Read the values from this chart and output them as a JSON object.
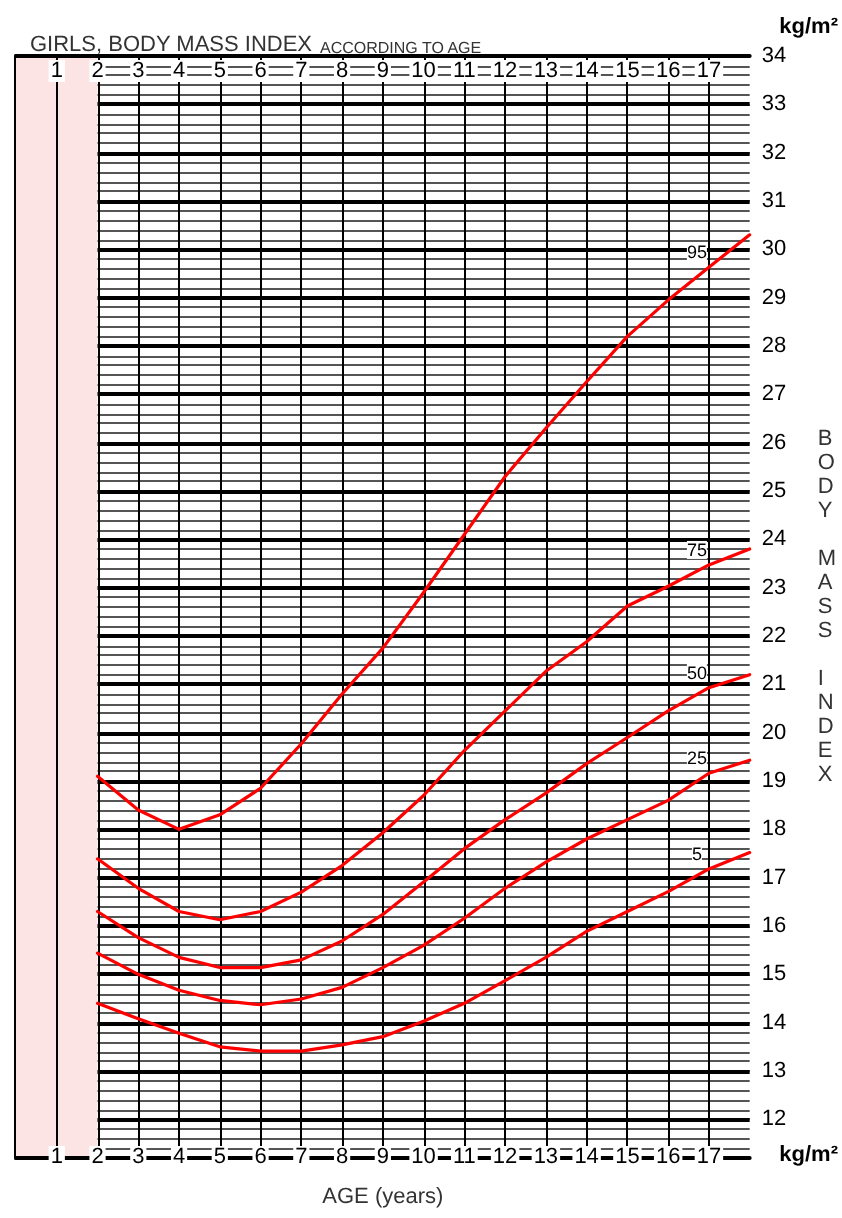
{
  "chart_data": {
    "type": "line",
    "title": "GIRLS, BODY MASS INDEX",
    "subtitle": "ACCORDING TO AGE",
    "xlabel": "AGE (years)",
    "ylabel": "BODY MASS INDEX",
    "annotations": [
      "kg/m²",
      "kg/m²"
    ],
    "x": [
      2,
      3,
      4,
      5,
      6,
      7,
      8,
      9,
      10,
      11,
      12,
      13,
      14,
      15,
      16,
      17,
      18
    ],
    "series": [
      {
        "name": "95",
        "color": "#ff0000",
        "values": [
          19.1,
          18.4,
          18.0,
          18.3,
          18.85,
          19.77,
          20.8,
          21.75,
          22.9,
          24.1,
          25.3,
          26.3,
          27.26,
          28.2,
          28.95,
          29.63,
          30.3
        ]
      },
      {
        "name": "75",
        "color": "#ff0000",
        "values": [
          17.39,
          16.78,
          16.3,
          16.13,
          16.3,
          16.7,
          17.25,
          17.93,
          18.7,
          19.63,
          20.45,
          21.27,
          21.88,
          22.62,
          23.03,
          23.47,
          23.8
        ]
      },
      {
        "name": "50",
        "color": "#ff0000",
        "values": [
          16.3,
          15.76,
          15.35,
          15.14,
          15.14,
          15.3,
          15.69,
          16.24,
          16.91,
          17.6,
          18.2,
          18.75,
          19.36,
          19.9,
          20.45,
          20.93,
          21.2
        ]
      },
      {
        "name": "25",
        "color": "#ff0000",
        "values": [
          15.44,
          15.0,
          14.67,
          14.46,
          14.37,
          14.49,
          14.73,
          15.14,
          15.6,
          16.16,
          16.78,
          17.32,
          17.8,
          18.2,
          18.6,
          19.16,
          19.43
        ]
      },
      {
        "name": "5",
        "color": "#ff0000",
        "values": [
          14.4,
          14.08,
          13.78,
          13.5,
          13.41,
          13.41,
          13.54,
          13.71,
          14.03,
          14.4,
          14.87,
          15.35,
          15.89,
          16.3,
          16.71,
          17.18,
          17.52
        ]
      }
    ],
    "xlim": [
      0,
      18
    ],
    "xticks": [
      1,
      2,
      3,
      4,
      5,
      6,
      7,
      8,
      9,
      10,
      11,
      12,
      13,
      14,
      15,
      16,
      17
    ],
    "x2lim": [
      0,
      18
    ],
    "x2ticks": [
      1,
      2,
      3,
      4,
      5,
      6,
      7,
      8,
      9,
      10,
      11,
      12,
      13,
      14,
      15,
      16,
      17
    ],
    "ylim": [
      11.2,
      34
    ],
    "yticks": [
      {
        "value": 11.2,
        "label": null
      },
      {
        "value": 11.4,
        "label": null
      },
      {
        "value": 11.6,
        "label": null
      },
      {
        "value": 11.8,
        "label": null
      },
      12,
      {
        "value": 12.2,
        "label": null
      },
      {
        "value": 12.4,
        "label": null
      },
      {
        "value": 12.6,
        "label": null
      },
      {
        "value": 12.8,
        "label": null
      },
      13,
      {
        "value": 13.2,
        "label": null
      },
      {
        "value": 13.4,
        "label": null
      },
      {
        "value": 13.6,
        "label": null
      },
      {
        "value": 13.8,
        "label": null
      },
      14,
      {
        "value": 14.2,
        "label": null
      },
      {
        "value": 14.4,
        "label": null
      },
      {
        "value": 14.6,
        "label": null
      },
      {
        "value": 14.8,
        "label": null
      },
      15,
      {
        "value": 15.2,
        "label": null
      },
      {
        "value": 15.4,
        "label": null
      },
      {
        "value": 15.6,
        "label": null
      },
      {
        "value": 15.8,
        "label": null
      },
      16,
      {
        "value": 16.2,
        "label": null
      },
      {
        "value": 16.4,
        "label": null
      },
      {
        "value": 16.6,
        "label": null
      },
      {
        "value": 16.8,
        "label": null
      },
      17,
      {
        "value": 17.2,
        "label": null
      },
      {
        "value": 17.4,
        "label": null
      },
      {
        "value": 17.6,
        "label": null
      },
      {
        "value": 17.8,
        "label": null
      },
      18,
      {
        "value": 18.2,
        "label": null
      },
      {
        "value": 18.4,
        "label": null
      },
      {
        "value": 18.6,
        "label": null
      },
      {
        "value": 18.8,
        "label": null
      },
      19,
      {
        "value": 19.2,
        "label": null
      },
      {
        "value": 19.4,
        "label": null
      },
      {
        "value": 19.6,
        "label": null
      },
      {
        "value": 19.8,
        "label": null
      },
      20,
      {
        "value": 20.2,
        "label": null
      },
      {
        "value": 20.4,
        "label": null
      },
      {
        "value": 20.6,
        "label": null
      },
      {
        "value": 20.8,
        "label": null
      },
      21,
      {
        "value": 21.2,
        "label": null
      },
      {
        "value": 21.4,
        "label": null
      },
      {
        "value": 21.6,
        "label": null
      },
      {
        "value": 21.8,
        "label": null
      },
      22,
      {
        "value": 22.2,
        "label": null
      },
      {
        "value": 22.4,
        "label": null
      },
      {
        "value": 22.6,
        "label": null
      },
      {
        "value": 22.8,
        "label": null
      },
      23,
      {
        "value": 23.2,
        "label": null
      },
      {
        "value": 23.4,
        "label": null
      },
      {
        "value": 23.6,
        "label": null
      },
      {
        "value": 23.8,
        "label": null
      },
      24,
      {
        "value": 24.2,
        "label": null
      },
      {
        "value": 24.4,
        "label": null
      },
      {
        "value": 24.6,
        "label": null
      },
      {
        "value": 24.8,
        "label": null
      },
      25,
      {
        "value": 25.2,
        "label": null
      },
      {
        "value": 25.4,
        "label": null
      },
      {
        "value": 25.6,
        "label": null
      },
      {
        "value": 25.8,
        "label": null
      },
      26,
      {
        "value": 26.2,
        "label": null
      },
      {
        "value": 26.4,
        "label": null
      },
      {
        "value": 26.6,
        "label": null
      },
      {
        "value": 26.8,
        "label": null
      },
      27,
      {
        "value": 27.2,
        "label": null
      },
      {
        "value": 27.4,
        "label": null
      },
      {
        "value": 27.6,
        "label": null
      },
      {
        "value": 27.8,
        "label": null
      },
      28,
      {
        "value": 28.2,
        "label": null
      },
      {
        "value": 28.4,
        "label": null
      },
      {
        "value": 28.6,
        "label": null
      },
      {
        "value": 28.8,
        "label": null
      },
      29,
      {
        "value": 29.2,
        "label": null
      },
      {
        "value": 29.4,
        "label": null
      },
      {
        "value": 29.6,
        "label": null
      },
      {
        "value": 29.8,
        "label": null
      },
      30,
      {
        "value": 30.2,
        "label": null
      },
      {
        "value": 30.4,
        "label": null
      },
      {
        "value": 30.6,
        "label": null
      },
      {
        "value": 30.8,
        "label": null
      },
      31,
      {
        "value": 31.2,
        "label": null
      },
      {
        "value": 31.4,
        "label": null
      },
      {
        "value": 31.6,
        "label": null
      },
      {
        "value": 31.8,
        "label": null
      },
      32,
      {
        "value": 32.2,
        "label": null
      },
      {
        "value": 32.4,
        "label": null
      },
      {
        "value": 32.6,
        "label": null
      },
      {
        "value": 32.8,
        "label": null
      },
      33,
      {
        "value": 33.2,
        "label": null
      },
      {
        "value": 33.4,
        "label": null
      },
      {
        "value": 33.6,
        "label": null
      },
      {
        "value": 33.8,
        "label": null
      },
      34
    ],
    "bands": [
      {
        "axis": "x",
        "from": 0,
        "to": 2,
        "color": "#fce4e4"
      }
    ],
    "grid": true,
    "legend": false,
    "marker": "none",
    "line_style": "solid"
  }
}
